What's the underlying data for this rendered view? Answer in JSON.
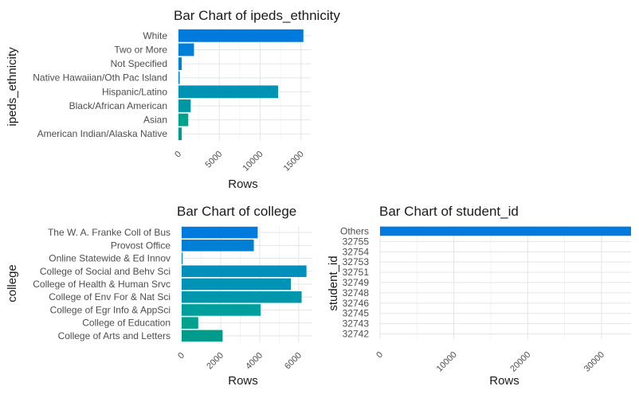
{
  "chart_data": [
    {
      "id": "ethnicity",
      "type": "bar",
      "orientation": "horizontal",
      "title": "Bar Chart of ipeds_ethnicity",
      "xlabel": "Rows",
      "ylabel": "ipeds_ethnicity",
      "xlim": [
        0,
        16200
      ],
      "xticks": [
        0,
        5000,
        10000,
        15000
      ],
      "categories": [
        "American Indian/Alaska Native",
        "Asian",
        "Black/African American",
        "Hispanic/Latino",
        "Native Hawaiian/Oth Pac Island",
        "Not Specified",
        "Two or More",
        "White"
      ],
      "values": [
        400,
        1200,
        1500,
        12200,
        150,
        400,
        1900,
        15300
      ],
      "colors": [
        "#009b8a",
        "#00a28e",
        "#0097a4",
        "#0093b3",
        "#0088c4",
        "#0081d0",
        "#007fd8",
        "#007bdd"
      ],
      "grid": true
    },
    {
      "id": "college",
      "type": "bar",
      "orientation": "horizontal",
      "title": "Bar Chart of college",
      "xlabel": "Rows",
      "ylabel": "college",
      "xlim": [
        0,
        6700
      ],
      "xticks": [
        0,
        2000,
        4000,
        6000
      ],
      "categories": [
        "College of Arts and Letters",
        "College of Education",
        "College of Egr Info & AppSci",
        "College of Env For & Nat Sci",
        "College of Health & Human Srvc",
        "College of Social and Behv Sci",
        "Online Statewide & Ed Innov",
        "Provost Office",
        "The W. A. Franke Coll of Bus"
      ],
      "values": [
        2100,
        850,
        4050,
        6150,
        5600,
        6400,
        50,
        3700,
        3900
      ],
      "colors": [
        "#009b8a",
        "#00a28e",
        "#009e9c",
        "#0096ac",
        "#0093b5",
        "#0090bb",
        "#0087c8",
        "#0080d5",
        "#007bdd"
      ],
      "grid": true
    },
    {
      "id": "student",
      "type": "bar",
      "orientation": "horizontal",
      "title": "Bar Chart of student_id",
      "xlabel": "Rows",
      "ylabel": "student_id",
      "xlim": [
        0,
        34000
      ],
      "xticks": [
        0,
        10000,
        20000,
        30000
      ],
      "categories": [
        "32742",
        "32743",
        "32745",
        "32746",
        "32748",
        "32749",
        "32751",
        "32753",
        "32754",
        "32755",
        "Others"
      ],
      "values": [
        1,
        1,
        1,
        1,
        1,
        1,
        1,
        1,
        1,
        1,
        34000
      ],
      "colors": [
        "#009b8a",
        "#009b8a",
        "#009b8a",
        "#009b8a",
        "#009b8a",
        "#009b8a",
        "#009b8a",
        "#009b8a",
        "#009b8a",
        "#009b8a",
        "#007bdd"
      ],
      "grid": true
    }
  ]
}
